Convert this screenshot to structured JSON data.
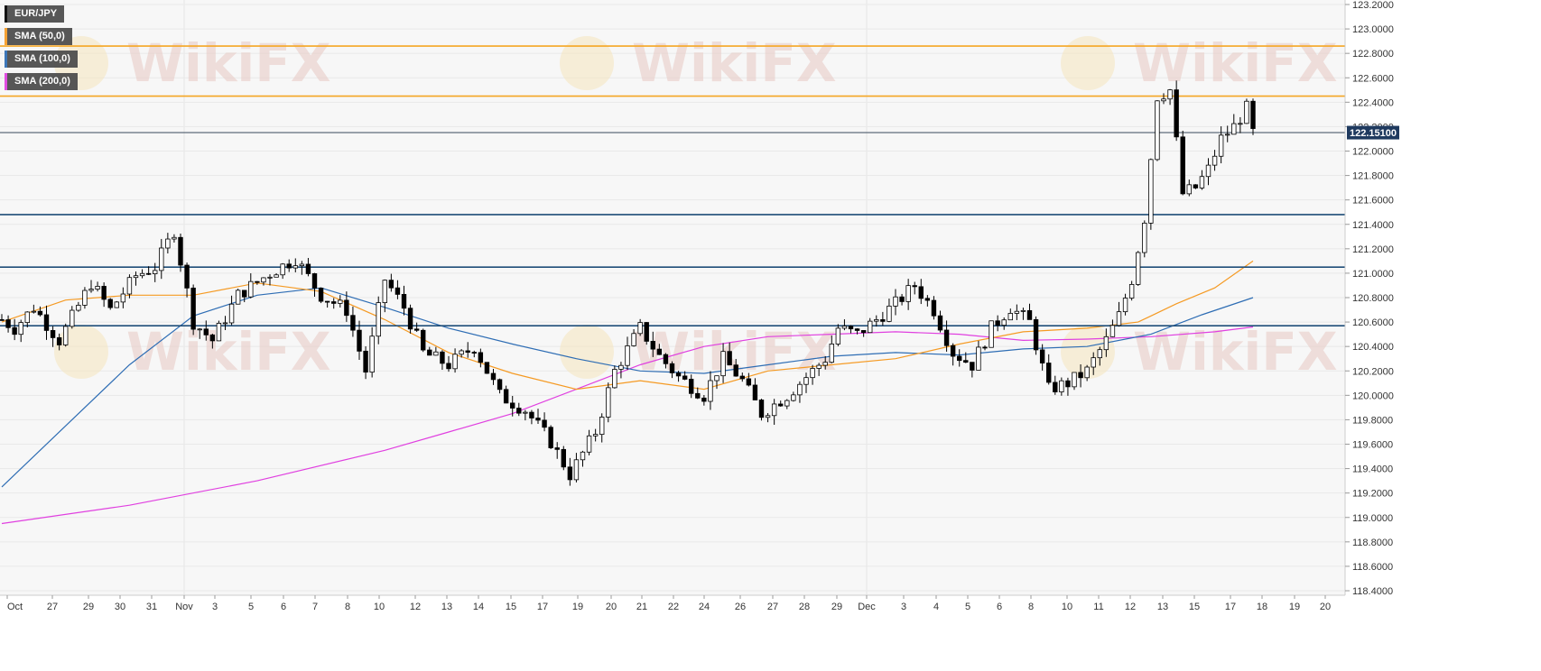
{
  "legend": [
    {
      "label": "EUR/JPY",
      "color": "#000000"
    },
    {
      "label": "SMA (50,0)",
      "color": "#f59a23"
    },
    {
      "label": "SMA (100,0)",
      "color": "#2e6db4"
    },
    {
      "label": "SMA (200,0)",
      "color": "#e040e0"
    }
  ],
  "watermark": "WikiFX",
  "current_price": "122.15100",
  "colors": {
    "up": "#ffffff",
    "down": "#000000",
    "sma50": "#f59a23",
    "sma100": "#2e6db4",
    "sma200": "#e040e0",
    "resistance": "#f5a623",
    "support": "#1f4e79",
    "price_tag": "#1f3a5f"
  },
  "chart_data": {
    "type": "candlestick",
    "symbol": "EUR/JPY",
    "ylim": [
      118.4,
      123.2
    ],
    "y_ticks": [
      "123.2000",
      "123.0000",
      "122.8000",
      "122.6000",
      "122.4000",
      "122.2000",
      "122.0000",
      "121.8000",
      "121.6000",
      "121.4000",
      "121.2000",
      "121.0000",
      "120.8000",
      "120.6000",
      "120.4000",
      "120.2000",
      "120.0000",
      "119.8000",
      "119.6000",
      "119.4000",
      "119.2000",
      "119.0000",
      "118.8000",
      "118.6000",
      "118.4000"
    ],
    "x_labels": [
      "Oct",
      "27",
      "29",
      "30",
      "31",
      "Nov",
      "3",
      "5",
      "6",
      "7",
      "8",
      "10",
      "12",
      "13",
      "14",
      "15",
      "17",
      "19",
      "20",
      "21",
      "22",
      "24",
      "26",
      "27",
      "28",
      "29",
      "Dec",
      "3",
      "4",
      "5",
      "6",
      "8",
      "10",
      "11",
      "12",
      "13",
      "15",
      "17",
      "18",
      "19",
      "20"
    ],
    "horizontal_levels": [
      {
        "value": 122.86,
        "kind": "resistance"
      },
      {
        "value": 122.45,
        "kind": "resistance"
      },
      {
        "value": 122.151,
        "kind": "current-price"
      },
      {
        "value": 121.48,
        "kind": "support"
      },
      {
        "value": 121.05,
        "kind": "support"
      },
      {
        "value": 120.57,
        "kind": "support"
      }
    ],
    "close_path": [
      [
        0,
        120.62
      ],
      [
        2,
        120.55
      ],
      [
        5,
        120.72
      ],
      [
        9,
        120.45
      ],
      [
        14,
        120.92
      ],
      [
        17,
        120.7
      ],
      [
        21,
        120.98
      ],
      [
        24,
        121.05
      ],
      [
        27,
        121.35
      ],
      [
        30,
        120.6
      ],
      [
        33,
        120.45
      ],
      [
        37,
        120.82
      ],
      [
        42,
        121.0
      ],
      [
        46,
        121.12
      ],
      [
        50,
        120.82
      ],
      [
        54,
        120.7
      ],
      [
        57,
        120.2
      ],
      [
        60,
        120.95
      ],
      [
        63,
        120.72
      ],
      [
        66,
        120.35
      ],
      [
        70,
        120.25
      ],
      [
        74,
        120.4
      ],
      [
        78,
        120.0
      ],
      [
        82,
        119.88
      ],
      [
        86,
        119.62
      ],
      [
        89,
        119.35
      ],
      [
        93,
        119.7
      ],
      [
        96,
        120.2
      ],
      [
        100,
        120.55
      ],
      [
        103,
        120.32
      ],
      [
        106,
        120.15
      ],
      [
        110,
        120.0
      ],
      [
        113,
        120.3
      ],
      [
        116,
        120.12
      ],
      [
        119,
        119.85
      ],
      [
        123,
        120.0
      ],
      [
        126,
        120.15
      ],
      [
        129,
        120.3
      ],
      [
        131,
        120.55
      ],
      [
        134,
        120.5
      ],
      [
        137,
        120.62
      ],
      [
        140,
        120.75
      ],
      [
        143,
        120.9
      ],
      [
        146,
        120.7
      ],
      [
        149,
        120.35
      ],
      [
        152,
        120.25
      ],
      [
        155,
        120.55
      ],
      [
        158,
        120.72
      ],
      [
        161,
        120.6
      ],
      [
        164,
        120.05
      ],
      [
        167,
        120.1
      ],
      [
        170,
        120.2
      ],
      [
        173,
        120.45
      ],
      [
        175,
        120.65
      ],
      [
        177,
        120.95
      ],
      [
        179,
        121.45
      ],
      [
        181,
        122.45
      ],
      [
        183,
        122.5
      ],
      [
        185,
        121.65
      ],
      [
        187,
        121.7
      ],
      [
        189,
        121.85
      ],
      [
        191,
        122.1
      ],
      [
        193,
        122.2
      ],
      [
        195,
        122.35
      ],
      [
        196,
        122.15
      ]
    ],
    "sma50": [
      [
        0,
        120.6
      ],
      [
        10,
        120.78
      ],
      [
        20,
        120.82
      ],
      [
        30,
        120.82
      ],
      [
        40,
        120.92
      ],
      [
        50,
        120.85
      ],
      [
        60,
        120.62
      ],
      [
        70,
        120.35
      ],
      [
        80,
        120.18
      ],
      [
        90,
        120.05
      ],
      [
        100,
        120.12
      ],
      [
        110,
        120.05
      ],
      [
        120,
        120.2
      ],
      [
        130,
        120.25
      ],
      [
        140,
        120.3
      ],
      [
        150,
        120.42
      ],
      [
        160,
        120.52
      ],
      [
        170,
        120.55
      ],
      [
        178,
        120.6
      ],
      [
        184,
        120.75
      ],
      [
        190,
        120.88
      ],
      [
        196,
        121.1
      ]
    ],
    "sma100": [
      [
        0,
        119.25
      ],
      [
        10,
        119.75
      ],
      [
        20,
        120.25
      ],
      [
        30,
        120.65
      ],
      [
        40,
        120.82
      ],
      [
        50,
        120.88
      ],
      [
        60,
        120.72
      ],
      [
        70,
        120.55
      ],
      [
        80,
        120.42
      ],
      [
        90,
        120.3
      ],
      [
        100,
        120.2
      ],
      [
        110,
        120.18
      ],
      [
        120,
        120.25
      ],
      [
        130,
        120.32
      ],
      [
        140,
        120.35
      ],
      [
        150,
        120.33
      ],
      [
        160,
        120.38
      ],
      [
        170,
        120.4
      ],
      [
        180,
        120.5
      ],
      [
        188,
        120.66
      ],
      [
        196,
        120.8
      ]
    ],
    "sma200": [
      [
        0,
        118.95
      ],
      [
        20,
        119.1
      ],
      [
        40,
        119.3
      ],
      [
        60,
        119.55
      ],
      [
        70,
        119.7
      ],
      [
        80,
        119.85
      ],
      [
        90,
        120.05
      ],
      [
        100,
        120.25
      ],
      [
        110,
        120.4
      ],
      [
        120,
        120.48
      ],
      [
        130,
        120.5
      ],
      [
        140,
        120.52
      ],
      [
        150,
        120.5
      ],
      [
        160,
        120.45
      ],
      [
        170,
        120.46
      ],
      [
        180,
        120.48
      ],
      [
        190,
        120.52
      ],
      [
        196,
        120.56
      ]
    ]
  }
}
